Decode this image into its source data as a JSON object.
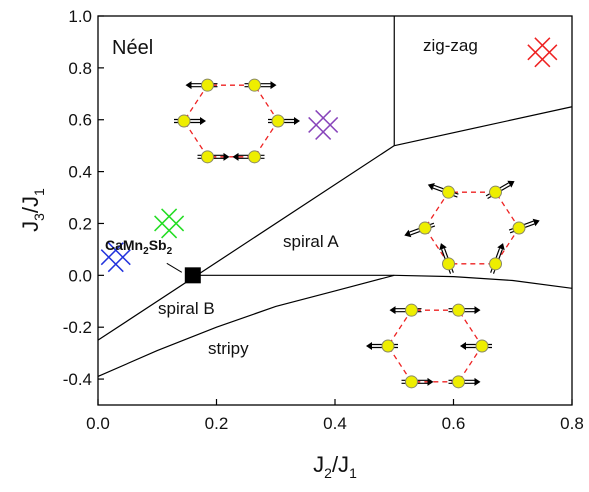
{
  "chart_data": {
    "type": "scatter",
    "xlabel": [
      "J",
      "2",
      "/J",
      "1"
    ],
    "ylabel": [
      "J",
      "3",
      "/J",
      "1"
    ],
    "xlim": [
      0,
      0.8
    ],
    "ylim": [
      -0.5,
      1.0
    ],
    "xticks": [
      {
        "value": 0,
        "label": "0.0"
      },
      0.2,
      0.4,
      0.6,
      0.8
    ],
    "yticks": [
      -0.4,
      -0.2,
      {
        "value": 0,
        "label": "0.0"
      },
      0.2,
      0.4,
      0.6,
      0.8,
      {
        "value": 1,
        "label": "1.0"
      }
    ],
    "lines": [
      {
        "x": [
          0,
          0.5
        ],
        "y": [
          -0.25,
          0.5
        ]
      },
      {
        "x": [
          0.5,
          0.5
        ],
        "y": [
          0.5,
          1.0
        ]
      },
      {
        "x": [
          0.5,
          0.8
        ],
        "y": [
          0.5,
          0.65
        ]
      },
      {
        "x": [
          0.16,
          0.5,
          0.6,
          0.7,
          0.8
        ],
        "y": [
          0,
          0,
          -0.005,
          -0.02,
          -0.05
        ]
      },
      {
        "x": [
          0,
          0.1,
          0.2,
          0.3,
          0.4,
          0.5
        ],
        "y": [
          -0.39,
          -0.29,
          -0.2,
          -0.12,
          -0.06,
          0
        ]
      }
    ],
    "points": [
      {
        "x": 0.03,
        "y": 0.07,
        "color": "#2233dd"
      },
      {
        "x": 0.12,
        "y": 0.2,
        "color": "#22dd22"
      },
      {
        "x": 0.38,
        "y": 0.58,
        "color": "#8844bb"
      },
      {
        "x": 0.75,
        "y": 0.86,
        "color": "#ee2222"
      }
    ],
    "compound": {
      "x": 0.16,
      "y": 0,
      "label": [
        "CaMn",
        "2",
        "Sb",
        "2"
      ]
    },
    "annotations": [
      "Néel",
      "zig-zag",
      "spiral A",
      "spiral B",
      "stripy"
    ]
  }
}
